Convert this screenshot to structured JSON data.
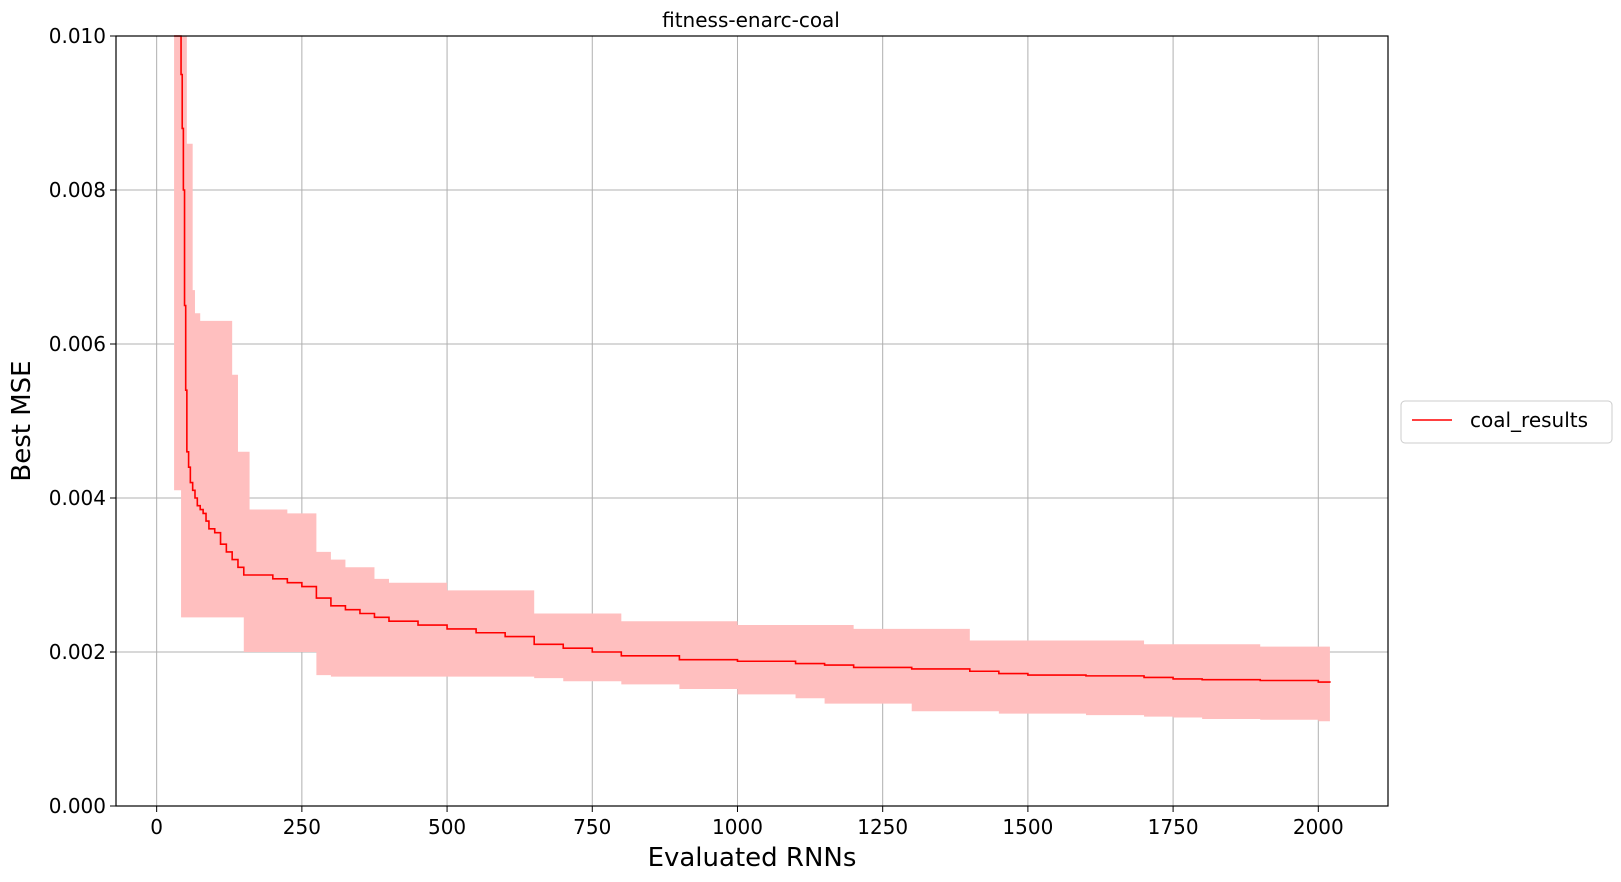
{
  "chart_data": {
    "type": "line",
    "title": "fitness-enarc-coal",
    "xlabel": "Evaluated RNNs",
    "ylabel": "Best MSE",
    "xlim": [
      -70,
      2120
    ],
    "ylim": [
      0.0,
      0.01
    ],
    "xticks": [
      0,
      250,
      500,
      750,
      1000,
      1250,
      1500,
      1750,
      2000
    ],
    "xtick_labels": [
      "0",
      "250",
      "500",
      "750",
      "1000",
      "1250",
      "1500",
      "1750",
      "2000"
    ],
    "yticks": [
      0.0,
      0.002,
      0.004,
      0.006,
      0.008,
      0.01
    ],
    "ytick_labels": [
      "0.000",
      "0.002",
      "0.004",
      "0.006",
      "0.008",
      "0.010"
    ],
    "grid": true,
    "legend": {
      "placement": "right-outside",
      "entries": [
        "coal_results"
      ]
    },
    "colors": {
      "line": "#ff0000",
      "band": "#ffbfbf"
    },
    "series": [
      {
        "name": "coal_results",
        "x": [
          30,
          38,
          42,
          44,
          46,
          48,
          50,
          52,
          55,
          58,
          62,
          66,
          70,
          75,
          80,
          85,
          90,
          100,
          110,
          120,
          130,
          140,
          150,
          160,
          175,
          200,
          225,
          250,
          275,
          300,
          325,
          350,
          375,
          400,
          450,
          500,
          550,
          600,
          650,
          700,
          750,
          800,
          900,
          1000,
          1100,
          1150,
          1200,
          1300,
          1400,
          1450,
          1500,
          1600,
          1700,
          1750,
          1800,
          1900,
          2000,
          2020
        ],
        "y": [
          0.01,
          0.01,
          0.0095,
          0.0088,
          0.008,
          0.0065,
          0.0054,
          0.0046,
          0.0044,
          0.0042,
          0.0041,
          0.004,
          0.0039,
          0.00385,
          0.0038,
          0.0037,
          0.0036,
          0.00355,
          0.0034,
          0.0033,
          0.0032,
          0.0031,
          0.003,
          0.003,
          0.003,
          0.00295,
          0.0029,
          0.00285,
          0.0027,
          0.0026,
          0.00255,
          0.0025,
          0.00245,
          0.0024,
          0.00235,
          0.0023,
          0.00225,
          0.0022,
          0.0021,
          0.00205,
          0.002,
          0.00195,
          0.0019,
          0.00188,
          0.00185,
          0.00183,
          0.0018,
          0.00178,
          0.00175,
          0.00172,
          0.0017,
          0.00169,
          0.00167,
          0.00165,
          0.00164,
          0.00163,
          0.00161,
          0.0016
        ],
        "lower": [
          0.0041,
          0.0041,
          0.00245,
          0.00245,
          0.00245,
          0.00245,
          0.00245,
          0.00245,
          0.00245,
          0.00245,
          0.00245,
          0.00245,
          0.00245,
          0.00245,
          0.00245,
          0.00245,
          0.00245,
          0.00245,
          0.00245,
          0.00245,
          0.00245,
          0.00245,
          0.002,
          0.002,
          0.002,
          0.002,
          0.002,
          0.002,
          0.0017,
          0.00168,
          0.00168,
          0.00168,
          0.00168,
          0.00168,
          0.00168,
          0.00168,
          0.00168,
          0.00168,
          0.00166,
          0.00162,
          0.00162,
          0.00158,
          0.00152,
          0.00145,
          0.0014,
          0.00133,
          0.00133,
          0.00123,
          0.00123,
          0.0012,
          0.0012,
          0.00118,
          0.00116,
          0.00115,
          0.00113,
          0.00112,
          0.0011,
          0.0011
        ],
        "upper": [
          0.01,
          0.01,
          0.01,
          0.01,
          0.01,
          0.01,
          0.01,
          0.0086,
          0.0086,
          0.0086,
          0.0067,
          0.0064,
          0.0064,
          0.0063,
          0.0063,
          0.0063,
          0.0063,
          0.0063,
          0.0063,
          0.0063,
          0.0056,
          0.0046,
          0.0046,
          0.00385,
          0.00385,
          0.00385,
          0.0038,
          0.0038,
          0.0033,
          0.0032,
          0.0031,
          0.0031,
          0.00295,
          0.0029,
          0.0029,
          0.0028,
          0.0028,
          0.0028,
          0.0025,
          0.0025,
          0.0025,
          0.0024,
          0.0024,
          0.00235,
          0.00235,
          0.00235,
          0.0023,
          0.0023,
          0.00215,
          0.00215,
          0.00215,
          0.00215,
          0.0021,
          0.0021,
          0.0021,
          0.00207,
          0.00207,
          0.00207
        ]
      }
    ]
  }
}
